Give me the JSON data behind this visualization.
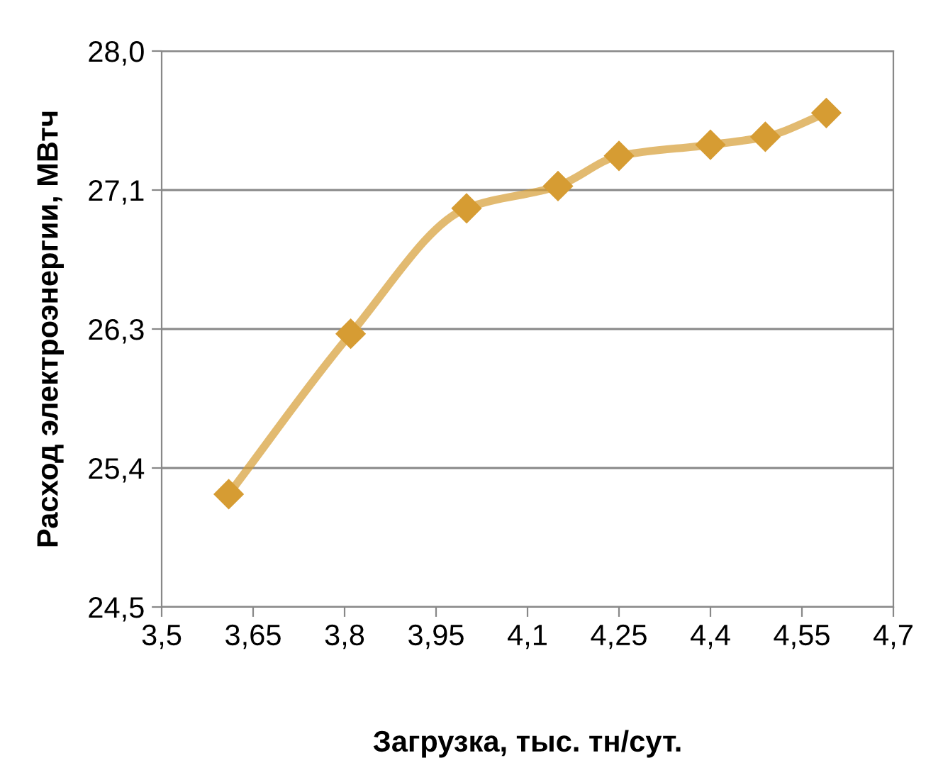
{
  "chart_data": {
    "type": "line",
    "xlabel": "Загрузка, тыс. тн/сут.",
    "ylabel": "Расход электроэнергии, МВтч",
    "x": [
      3.61,
      3.81,
      4.0,
      4.15,
      4.25,
      4.4,
      4.49,
      4.59
    ],
    "series": [
      {
        "color": "#d69c33",
        "values": [
          25.21,
          26.22,
          27.01,
          27.15,
          27.34,
          27.41,
          27.46,
          27.61
        ]
      }
    ],
    "xlim": [
      3.5,
      4.7
    ],
    "xticks": [
      {
        "value": 3.5,
        "label": "3,5"
      },
      {
        "value": 3.65,
        "label": "3,65"
      },
      {
        "value": 3.8,
        "label": "3,8"
      },
      {
        "value": 3.95,
        "label": "3,95"
      },
      {
        "value": 4.1,
        "label": "4,1"
      },
      {
        "value": 4.25,
        "label": "4,25"
      },
      {
        "value": 4.4,
        "label": "4,4"
      },
      {
        "value": 4.55,
        "label": "4,55"
      },
      {
        "value": 4.7,
        "label": "4,7"
      }
    ],
    "ylim": [
      24.5,
      28.0
    ],
    "yticks": [
      {
        "value": 24.5,
        "label": "24,5"
      },
      {
        "value": 25.375,
        "label": "25,4"
      },
      {
        "value": 26.25,
        "label": "26,3"
      },
      {
        "value": 27.125,
        "label": "27,1"
      },
      {
        "value": 28.0,
        "label": "28,0"
      }
    ],
    "grid": "y",
    "marker": "diamond",
    "line_style": "solid",
    "legend": false
  }
}
